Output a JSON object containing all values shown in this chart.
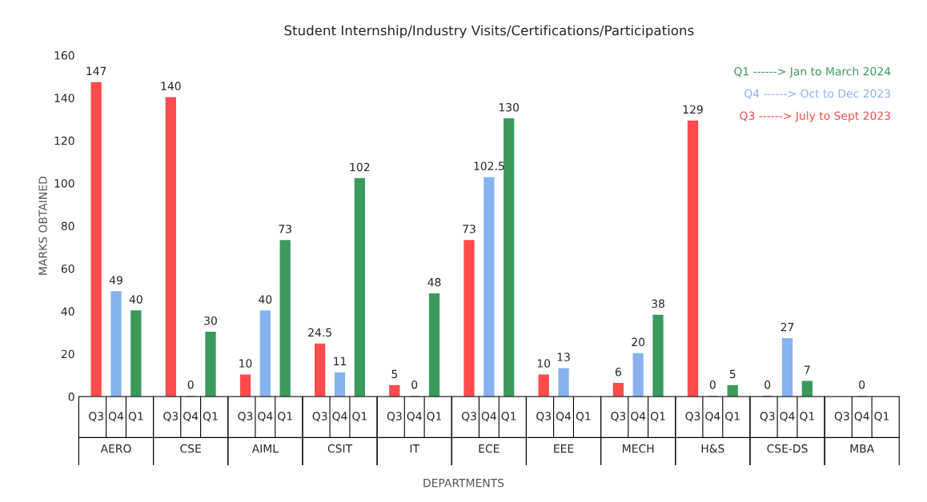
{
  "chart_data": {
    "type": "bar",
    "title": "Student Internship/Industry Visits/Certifications/Participations",
    "xlabel": "DEPARTMENTS",
    "ylabel": "MARKS OBTAINED",
    "categories": [
      "AERO",
      "CSE",
      "AIML",
      "CSIT",
      "IT",
      "ECE",
      "EEE",
      "MECH",
      "H&S",
      "CSE-DS",
      "MBA"
    ],
    "series": [
      {
        "name": "Q3",
        "color": "#ff4b4b",
        "values": [
          147,
          140,
          10,
          24.5,
          5,
          73,
          10,
          6,
          129,
          0,
          null
        ]
      },
      {
        "name": "Q4",
        "color": "#86b3ee",
        "values": [
          49,
          0,
          40,
          11,
          0,
          102.5,
          13,
          20,
          0,
          27,
          0
        ]
      },
      {
        "name": "Q1",
        "color": "#3a9a5c",
        "values": [
          40,
          30,
          73,
          102,
          48,
          130,
          null,
          38,
          5,
          7,
          null
        ]
      }
    ],
    "ylim": [
      0,
      160
    ],
    "yticks": [
      0,
      20,
      40,
      60,
      80,
      100,
      120,
      140,
      160
    ],
    "data_labels": true,
    "grid": false,
    "annotations": [
      "Q1 ------> Jan to March 2024",
      "Q4 ------> Oct to Dec 2023",
      "Q3 ------> July to Sept 2023"
    ]
  }
}
